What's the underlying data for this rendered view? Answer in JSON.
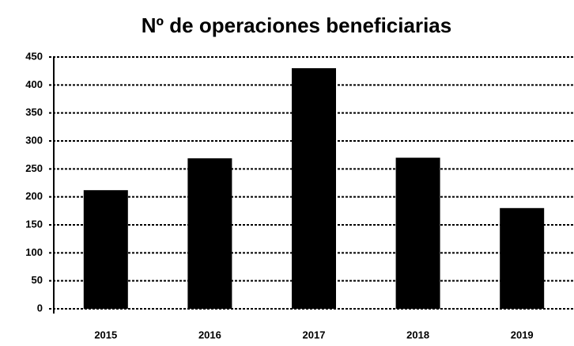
{
  "chart_data": {
    "type": "bar",
    "title": "Nº de operaciones beneficiarias",
    "categories": [
      "2015",
      "2016",
      "2017",
      "2018",
      "2019"
    ],
    "values": [
      212,
      269,
      430,
      270,
      180
    ],
    "color": "#000000",
    "ylim": [
      0,
      450
    ],
    "yticks": [
      0,
      50,
      100,
      150,
      200,
      250,
      300,
      350,
      400,
      450
    ],
    "grid": true
  }
}
